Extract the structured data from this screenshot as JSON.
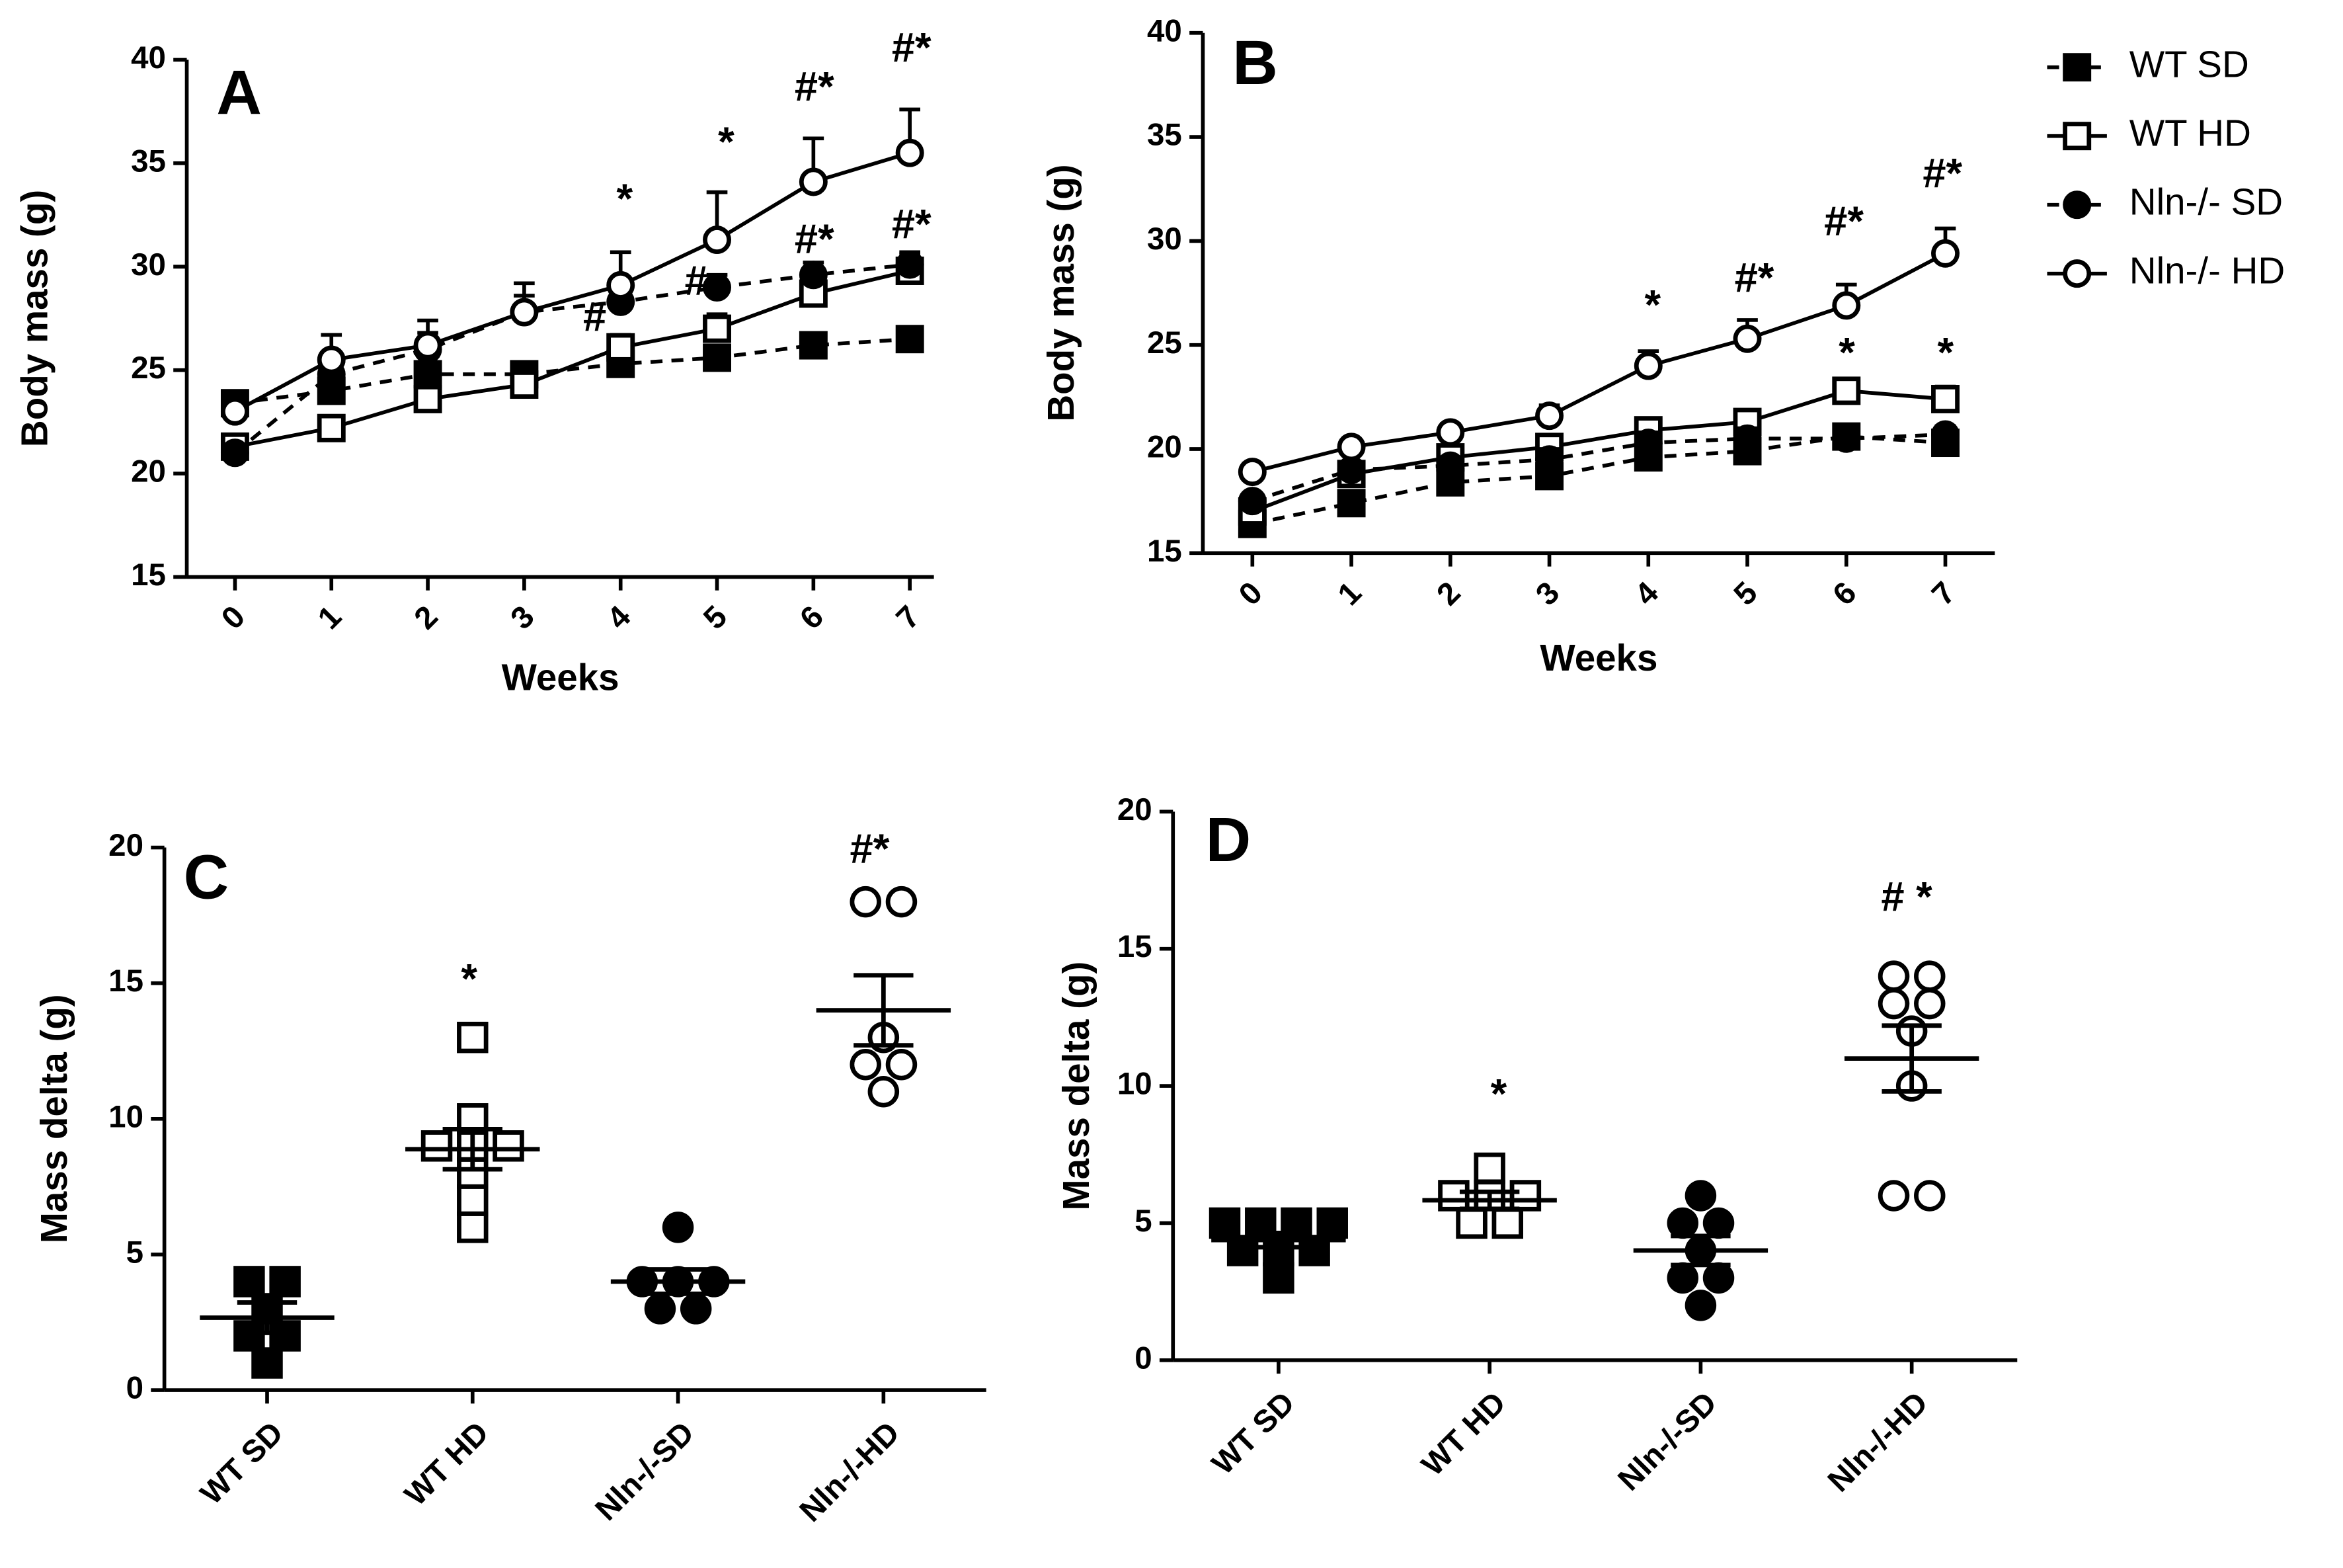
{
  "chart_data": [
    {
      "type": "line",
      "panel_label": "A",
      "y_label": "Body mass (g)",
      "x_label": "Weeks",
      "x": [
        0,
        1,
        2,
        3,
        4,
        5,
        6,
        7
      ],
      "xlim": [
        -0.5,
        7.25
      ],
      "xticks": [
        0,
        1,
        2,
        3,
        4,
        5,
        6,
        7
      ],
      "ylim": [
        15,
        40
      ],
      "yticks": [
        15,
        20,
        25,
        30,
        35,
        40
      ],
      "legend": false,
      "series": [
        {
          "name": "WT SD",
          "color": "#000000",
          "marker": "square-filled",
          "line_style": "dashed",
          "values": [
            23.4,
            24.0,
            24.8,
            24.8,
            25.3,
            25.6,
            26.2,
            26.5
          ],
          "errors": [
            0.5,
            0.6,
            0.5,
            0.5,
            0.5,
            0.4,
            0.4,
            0.4
          ]
        },
        {
          "name": "WT HD",
          "color": "#000000",
          "marker": "square-open",
          "line_style": "solid",
          "values": [
            21.3,
            22.2,
            23.6,
            24.3,
            26.1,
            27.0,
            28.7,
            29.8
          ],
          "errors": [
            0.4,
            0.5,
            0.5,
            0.5,
            0.6,
            0.7,
            0.8,
            0.8
          ]
        },
        {
          "name": "Nln-/- SD",
          "color": "#000000",
          "marker": "circle-filled",
          "line_style": "dashed",
          "values": [
            21.0,
            24.8,
            26.0,
            27.8,
            28.3,
            29.0,
            29.6,
            30.1
          ],
          "errors": [
            0.4,
            0.8,
            0.8,
            0.8,
            0.7,
            0.6,
            0.6,
            0.6
          ]
        },
        {
          "name": "Nln-/- HD",
          "color": "#000000",
          "marker": "circle-open",
          "line_style": "solid",
          "values": [
            23.0,
            25.5,
            26.2,
            27.8,
            29.1,
            31.3,
            34.1,
            35.5
          ],
          "errors": [
            0.6,
            1.2,
            1.2,
            1.4,
            1.6,
            2.3,
            2.1,
            2.1
          ]
        }
      ],
      "annotations": [
        "*",
        "*",
        "#*",
        "#*",
        "#*",
        "#*",
        "#",
        "#"
      ]
    },
    {
      "type": "line",
      "panel_label": "B",
      "y_label": "Body mass (g)",
      "x_label": "Weeks",
      "x": [
        0,
        1,
        2,
        3,
        4,
        5,
        6,
        7
      ],
      "xlim": [
        -0.5,
        7.5
      ],
      "xticks": [
        0,
        1,
        2,
        3,
        4,
        5,
        6,
        7
      ],
      "ylim": [
        15,
        40
      ],
      "yticks": [
        15,
        20,
        25,
        30,
        35,
        40
      ],
      "legend": "right",
      "series": [
        {
          "name": "WT SD",
          "color": "#000000",
          "marker": "square-filled",
          "line_style": "dashed",
          "values": [
            16.4,
            17.4,
            18.4,
            18.7,
            19.6,
            19.9,
            20.6,
            20.3
          ],
          "errors": [
            0.3,
            0.3,
            0.4,
            0.4,
            0.5,
            0.8,
            0.4,
            0.3
          ]
        },
        {
          "name": "WT HD",
          "color": "#000000",
          "marker": "square-open",
          "line_style": "solid",
          "values": [
            17.0,
            18.8,
            19.6,
            20.1,
            20.9,
            21.3,
            22.8,
            22.4
          ],
          "errors": [
            0.4,
            0.5,
            0.5,
            0.5,
            0.5,
            0.5,
            0.5,
            0.6
          ]
        },
        {
          "name": "Nln-/- SD",
          "color": "#000000",
          "marker": "circle-filled",
          "line_style": "dashed",
          "values": [
            17.5,
            19.0,
            19.2,
            19.5,
            20.3,
            20.5,
            20.5,
            20.7
          ],
          "errors": [
            0.3,
            0.4,
            0.4,
            0.5,
            0.5,
            0.5,
            0.4,
            0.4
          ]
        },
        {
          "name": "Nln-/- HD",
          "color": "#000000",
          "marker": "circle-open",
          "line_style": "solid",
          "values": [
            18.9,
            20.1,
            20.8,
            21.6,
            24.0,
            25.3,
            26.9,
            29.4
          ],
          "errors": [
            0.4,
            0.3,
            0.4,
            0.5,
            0.7,
            0.9,
            1.0,
            1.2
          ]
        }
      ],
      "annotations": [
        "*",
        "#*",
        "#*",
        "#*",
        "*",
        "*"
      ]
    },
    {
      "type": "strip",
      "panel_label": "C",
      "y_label": "Mass delta (g)",
      "categories": [
        "WT SD",
        "WT HD",
        "Nln-/-SD",
        "Nln-/-HD"
      ],
      "ylim": [
        0,
        20
      ],
      "yticks": [
        0,
        5,
        10,
        15,
        20
      ],
      "markers": [
        "square-filled",
        "square-open",
        "circle-filled",
        "circle-open"
      ],
      "color": "#000000",
      "points": [
        [
          4,
          4,
          3,
          2,
          2,
          1
        ],
        [
          13,
          10,
          9,
          9,
          9,
          8,
          7,
          6
        ],
        [
          6,
          4,
          4,
          4,
          3,
          3
        ],
        [
          18,
          18,
          13,
          12,
          12,
          11
        ]
      ],
      "mean": [
        2.67,
        8.88,
        4.0,
        14.0
      ],
      "sem": [
        0.56,
        0.74,
        0.45,
        1.29
      ],
      "annotations": [
        "*",
        "#*"
      ]
    },
    {
      "type": "strip",
      "panel_label": "D",
      "y_label": "Mass delta (g)",
      "categories": [
        "WT SD",
        "WT HD",
        "Nln-/-SD",
        "Nln-/-HD"
      ],
      "ylim": [
        0,
        20
      ],
      "yticks": [
        0,
        5,
        10,
        15,
        20
      ],
      "markers": [
        "square-filled",
        "square-open",
        "circle-filled",
        "circle-open"
      ],
      "color": "#000000",
      "points": [
        [
          5,
          5,
          5,
          5,
          4,
          4,
          4,
          3
        ],
        [
          7,
          6,
          6,
          6,
          5,
          5
        ],
        [
          6,
          5,
          5,
          4,
          3,
          3,
          2
        ],
        [
          14,
          14,
          13,
          13,
          12,
          10,
          6,
          6
        ]
      ],
      "mean": [
        4.38,
        5.83,
        4.0,
        11.0
      ],
      "sem": [
        0.26,
        0.31,
        0.53,
        1.2
      ],
      "annotations": [
        "*",
        "# *"
      ]
    }
  ]
}
